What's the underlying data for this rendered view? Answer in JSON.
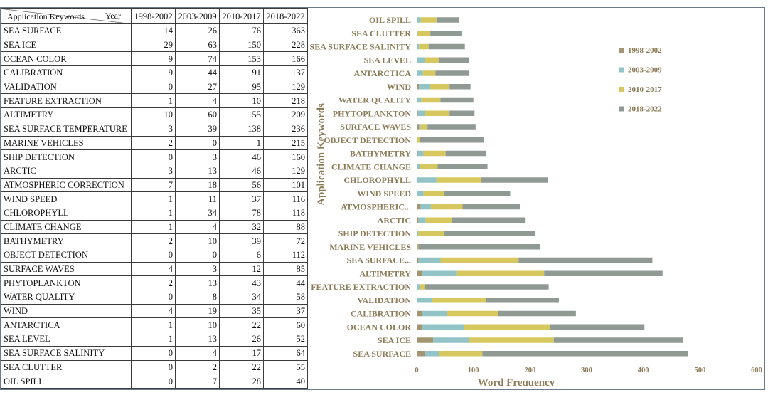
{
  "table": {
    "corner_year": "Year",
    "corner_keywords": "Application Keywords",
    "columns": [
      "1998-2002",
      "2003-2009",
      "2010-2017",
      "2018-2022"
    ],
    "rows": [
      {
        "keyword": "SEA SURFACE",
        "values": [
          14,
          26,
          76,
          363
        ]
      },
      {
        "keyword": "SEA ICE",
        "values": [
          29,
          63,
          150,
          228
        ]
      },
      {
        "keyword": "OCEAN COLOR",
        "values": [
          9,
          74,
          153,
          166
        ]
      },
      {
        "keyword": "CALIBRATION",
        "values": [
          9,
          44,
          91,
          137
        ]
      },
      {
        "keyword": "VALIDATION",
        "values": [
          0,
          27,
          95,
          129
        ]
      },
      {
        "keyword": "FEATURE EXTRACTION",
        "values": [
          1,
          4,
          10,
          218
        ]
      },
      {
        "keyword": "ALTIMETRY",
        "values": [
          10,
          60,
          155,
          209
        ]
      },
      {
        "keyword": "SEA SURFACE TEMPERATURE",
        "values": [
          3,
          39,
          138,
          236
        ]
      },
      {
        "keyword": "MARINE VEHICLES",
        "values": [
          2,
          0,
          1,
          215
        ]
      },
      {
        "keyword": "SHIP DETECTION",
        "values": [
          0,
          3,
          46,
          160
        ]
      },
      {
        "keyword": "ARCTIC",
        "values": [
          3,
          13,
          46,
          129
        ]
      },
      {
        "keyword": "ATMOSPHERIC CORRECTION",
        "values": [
          7,
          18,
          56,
          101
        ]
      },
      {
        "keyword": "WIND SPEED",
        "values": [
          1,
          11,
          37,
          116
        ]
      },
      {
        "keyword": "CHLOROPHYLL",
        "values": [
          1,
          34,
          78,
          118
        ]
      },
      {
        "keyword": "CLIMATE CHANGE",
        "values": [
          1,
          4,
          32,
          88
        ]
      },
      {
        "keyword": "BATHYMETRY",
        "values": [
          2,
          10,
          39,
          72
        ]
      },
      {
        "keyword": "OBJECT DETECTION",
        "values": [
          0,
          0,
          6,
          112
        ]
      },
      {
        "keyword": "SURFACE WAVES",
        "values": [
          4,
          3,
          12,
          85
        ]
      },
      {
        "keyword": "PHYTOPLANKTON",
        "values": [
          2,
          13,
          43,
          44
        ]
      },
      {
        "keyword": "WATER QUALITY",
        "values": [
          0,
          8,
          34,
          58
        ]
      },
      {
        "keyword": "WIND",
        "values": [
          4,
          19,
          35,
          37
        ]
      },
      {
        "keyword": "ANTARCTICA",
        "values": [
          1,
          10,
          22,
          60
        ]
      },
      {
        "keyword": "SEA LEVEL",
        "values": [
          1,
          13,
          26,
          52
        ]
      },
      {
        "keyword": "SEA SURFACE SALINITY",
        "values": [
          0,
          4,
          17,
          64
        ]
      },
      {
        "keyword": "SEA CLUTTER",
        "values": [
          0,
          2,
          22,
          55
        ]
      },
      {
        "keyword": "OIL SPILL",
        "values": [
          0,
          7,
          28,
          40
        ]
      }
    ]
  },
  "chart_data": {
    "type": "bar",
    "orientation": "horizontal",
    "stacked": true,
    "categories": [
      "SEA SURFACE",
      "SEA ICE",
      "OCEAN COLOR",
      "CALIBRATION",
      "VALIDATION",
      "FEATURE EXTRACTION",
      "ALTIMETRY",
      "SEA SURFACE...",
      "MARINE VEHICLES",
      "SHIP DETECTION",
      "ARCTIC",
      "ATMOSPHERIC...",
      "WIND SPEED",
      "CHLOROPHYLL",
      "CLIMATE CHANGE",
      "BATHYMETRY",
      "OBJECT DETECTION",
      "SURFACE WAVES",
      "PHYTOPLANKTON",
      "WATER QUALITY",
      "WIND",
      "ANTARCTICA",
      "SEA LEVEL",
      "SEA SURFACE SALINITY",
      "SEA CLUTTER",
      "OIL SPILL"
    ],
    "series": [
      {
        "name": "1998-2002",
        "color": "#a39572",
        "values": [
          14,
          29,
          9,
          9,
          0,
          1,
          10,
          3,
          2,
          0,
          3,
          7,
          1,
          1,
          1,
          2,
          0,
          4,
          2,
          0,
          4,
          1,
          1,
          0,
          0,
          0
        ]
      },
      {
        "name": "2003-2009",
        "color": "#92c4c7",
        "values": [
          26,
          63,
          74,
          44,
          27,
          4,
          60,
          39,
          0,
          3,
          13,
          18,
          11,
          34,
          4,
          10,
          0,
          3,
          13,
          8,
          19,
          10,
          13,
          4,
          2,
          7
        ]
      },
      {
        "name": "2010-2017",
        "color": "#d6c85e",
        "values": [
          76,
          150,
          153,
          91,
          95,
          10,
          155,
          138,
          1,
          46,
          46,
          56,
          37,
          78,
          32,
          39,
          6,
          12,
          43,
          34,
          35,
          22,
          26,
          17,
          22,
          28
        ]
      },
      {
        "name": "2018-2022",
        "color": "#8f9a95",
        "values": [
          363,
          228,
          166,
          137,
          129,
          218,
          209,
          236,
          215,
          160,
          129,
          101,
          116,
          118,
          88,
          72,
          112,
          85,
          44,
          58,
          37,
          60,
          52,
          64,
          55,
          40
        ]
      }
    ],
    "title": "",
    "xlabel": "Word  Frequency",
    "ylabel": "Application Keywords",
    "xlim": [
      0,
      600
    ],
    "xticks": [
      "0",
      "100",
      "200",
      "300",
      "400",
      "500",
      "600"
    ],
    "grid": false,
    "legend": "right"
  }
}
